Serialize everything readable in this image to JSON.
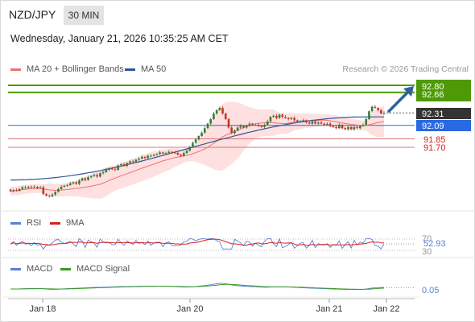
{
  "header": {
    "symbol": "NZD/JPY",
    "timeframe": "30 MIN",
    "datetime": "Wednesday, January 21, 2026 10:35:25 AM CET",
    "credit": "Research © 2026 Trading Central"
  },
  "legend": {
    "ma20": "MA 20 + Bollinger Bands",
    "ma50": "MA 50",
    "rsi": "RSI",
    "rsi_ma": "9MA",
    "macd": "MACD",
    "macd_signal": "MACD Signal"
  },
  "colors": {
    "ma20": "#f07070",
    "ma50": "#2f5597",
    "bollinger_fill": "#fde0df",
    "resistance": "#4e9a06",
    "pivot": "#2a6ae0",
    "support": "#e07070",
    "candle_up": "#3a7a3a",
    "candle_down": "#c0392b",
    "rsi": "#5b7fd6",
    "rsi_ma": "#d62020",
    "macd": "#5b7fd6",
    "macd_signal": "#3a9a20",
    "arrow": "#2f5fa0",
    "last_price_bg": "#333333"
  },
  "levels": {
    "r2": "92.80",
    "r1": "92.66",
    "last": "92.31",
    "pivot": "92.09",
    "s1": "91.85",
    "s2": "91.70"
  },
  "rsi_panel": {
    "top_level": "70",
    "value": "52.93",
    "bottom_level": "30"
  },
  "macd_panel": {
    "value": "0.05"
  },
  "x_labels": [
    "Jan 18",
    "Jan 20",
    "Jan 21",
    "Jan 22"
  ],
  "chart_data": {
    "type": "candlestick",
    "ylim": [
      90.7,
      92.95
    ],
    "start": 90.95,
    "closes": [
      90.92,
      90.94,
      90.93,
      90.96,
      90.99,
      90.98,
      91.0,
      90.99,
      91.0,
      90.98,
      90.99,
      90.87,
      90.84,
      90.83,
      90.86,
      90.91,
      90.96,
      91.0,
      91.02,
      91.03,
      91.06,
      91.08,
      91.05,
      91.11,
      91.15,
      91.12,
      91.17,
      91.19,
      91.21,
      91.18,
      91.24,
      91.26,
      91.3,
      91.33,
      91.31,
      91.3,
      91.38,
      91.4,
      91.37,
      91.42,
      91.45,
      91.44,
      91.48,
      91.5,
      91.53,
      91.51,
      91.55,
      91.55,
      91.57,
      91.58,
      91.61,
      91.59,
      91.6,
      91.62,
      91.61,
      91.6,
      91.57,
      91.55,
      91.6,
      91.64,
      91.71,
      91.78,
      91.84,
      91.9,
      91.96,
      92.04,
      92.12,
      92.2,
      92.3,
      92.36,
      92.4,
      92.3,
      92.2,
      92.05,
      91.95,
      92.0,
      92.05,
      92.08,
      92.05,
      92.08,
      92.12,
      92.1,
      92.1,
      92.08,
      92.06,
      92.1,
      92.16,
      92.24,
      92.26,
      92.22,
      92.28,
      92.24,
      92.22,
      92.2,
      92.22,
      92.18,
      92.16,
      92.16,
      92.18,
      92.14,
      92.12,
      92.16,
      92.12,
      92.14,
      92.12,
      92.1,
      92.12,
      92.08,
      92.06,
      92.04,
      92.1,
      92.04,
      92.02,
      92.06,
      92.02,
      92.06,
      92.04,
      92.08,
      92.1,
      92.2,
      92.34,
      92.42,
      92.4,
      92.36,
      92.3,
      92.31
    ],
    "ma50_start": 91.12,
    "ma50_end": 92.24,
    "rsi_ylim": [
      20,
      80
    ],
    "rsi_levels": [
      70,
      30
    ],
    "rsi_last": 52.93,
    "macd_last": 0.05,
    "projection": {
      "from": 92.31,
      "to": 92.8
    }
  }
}
